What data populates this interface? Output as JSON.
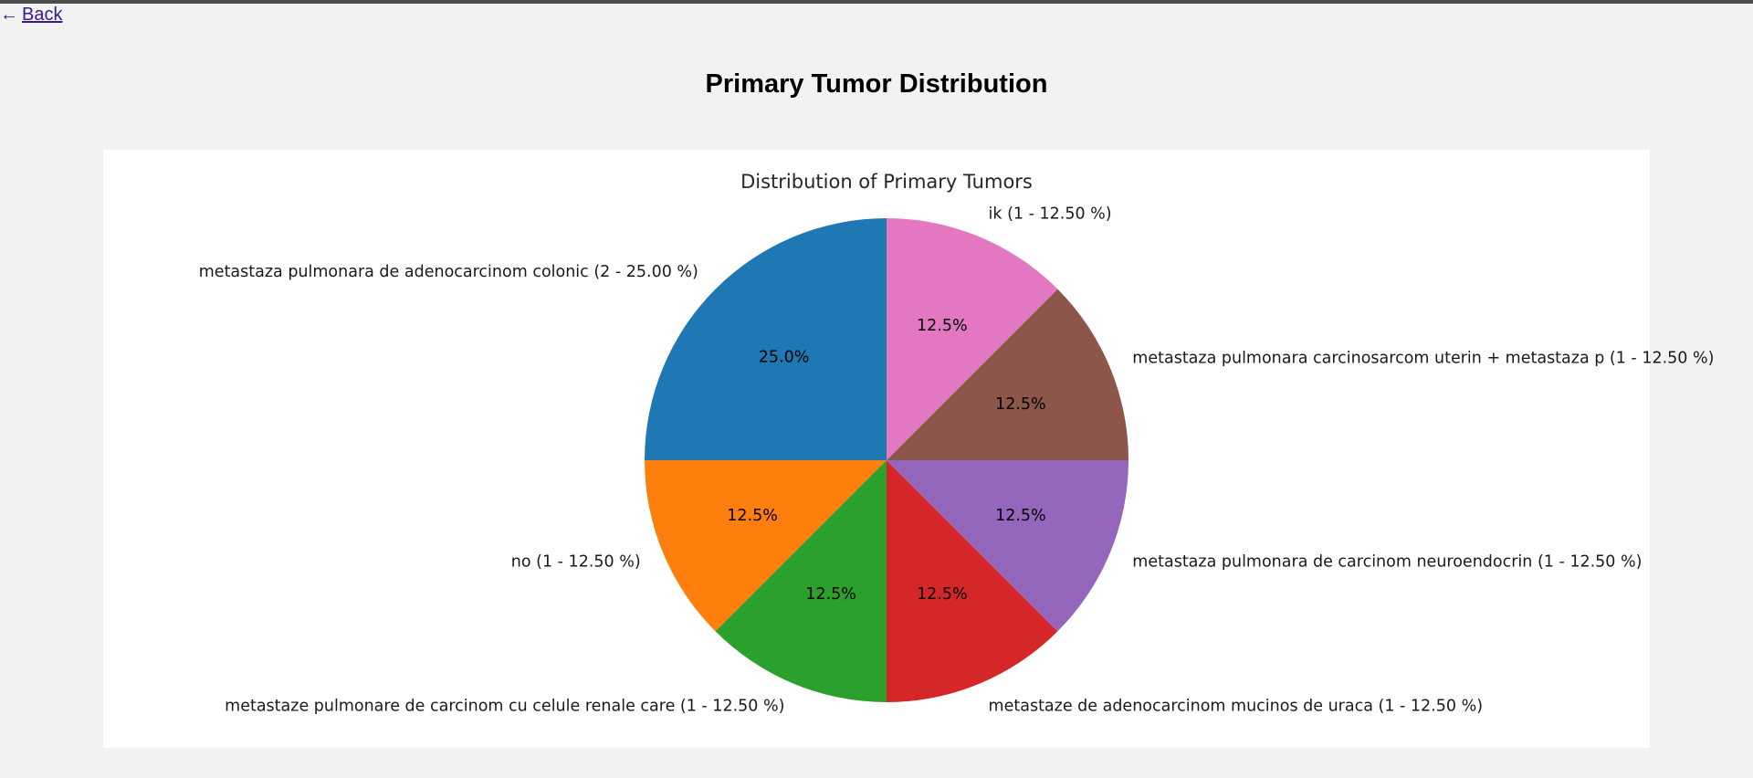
{
  "nav": {
    "back_arrow": "←",
    "back_label": "Back"
  },
  "page": {
    "title": "Primary Tumor Distribution"
  },
  "chart_data": {
    "type": "pie",
    "title": "Distribution of Primary Tumors",
    "start_angle_deg": 0,
    "direction": "counterclockwise",
    "slices": [
      {
        "label": "metastaza pulmonara carcinosarcom uterin + metastaza p (1 - 12.50 %)",
        "value": 1,
        "pct_label": "12.5%",
        "color": "#8c564b"
      },
      {
        "label": "ik (1 - 12.50 %)",
        "value": 1,
        "pct_label": "12.5%",
        "color": "#e377c2"
      },
      {
        "label": "metastaza pulmonara de adenocarcinom colonic (2 - 25.00 %)",
        "value": 2,
        "pct_label": "25.0%",
        "color": "#1f77b4"
      },
      {
        "label": "no (1 - 12.50 %)",
        "value": 1,
        "pct_label": "12.5%",
        "color": "#ff7f0e"
      },
      {
        "label": "metastaze pulmonare de carcinom cu celule renale care (1 - 12.50 %)",
        "value": 1,
        "pct_label": "12.5%",
        "color": "#2ca02c"
      },
      {
        "label": "metastaze de adenocarcinom mucinos de uraca (1 - 12.50 %)",
        "value": 1,
        "pct_label": "12.5%",
        "color": "#d62728"
      },
      {
        "label": "metastaza pulmonara de carcinom neuroendocrin (1 - 12.50 %)",
        "value": 1,
        "pct_label": "12.5%",
        "color": "#9467bd"
      }
    ]
  }
}
